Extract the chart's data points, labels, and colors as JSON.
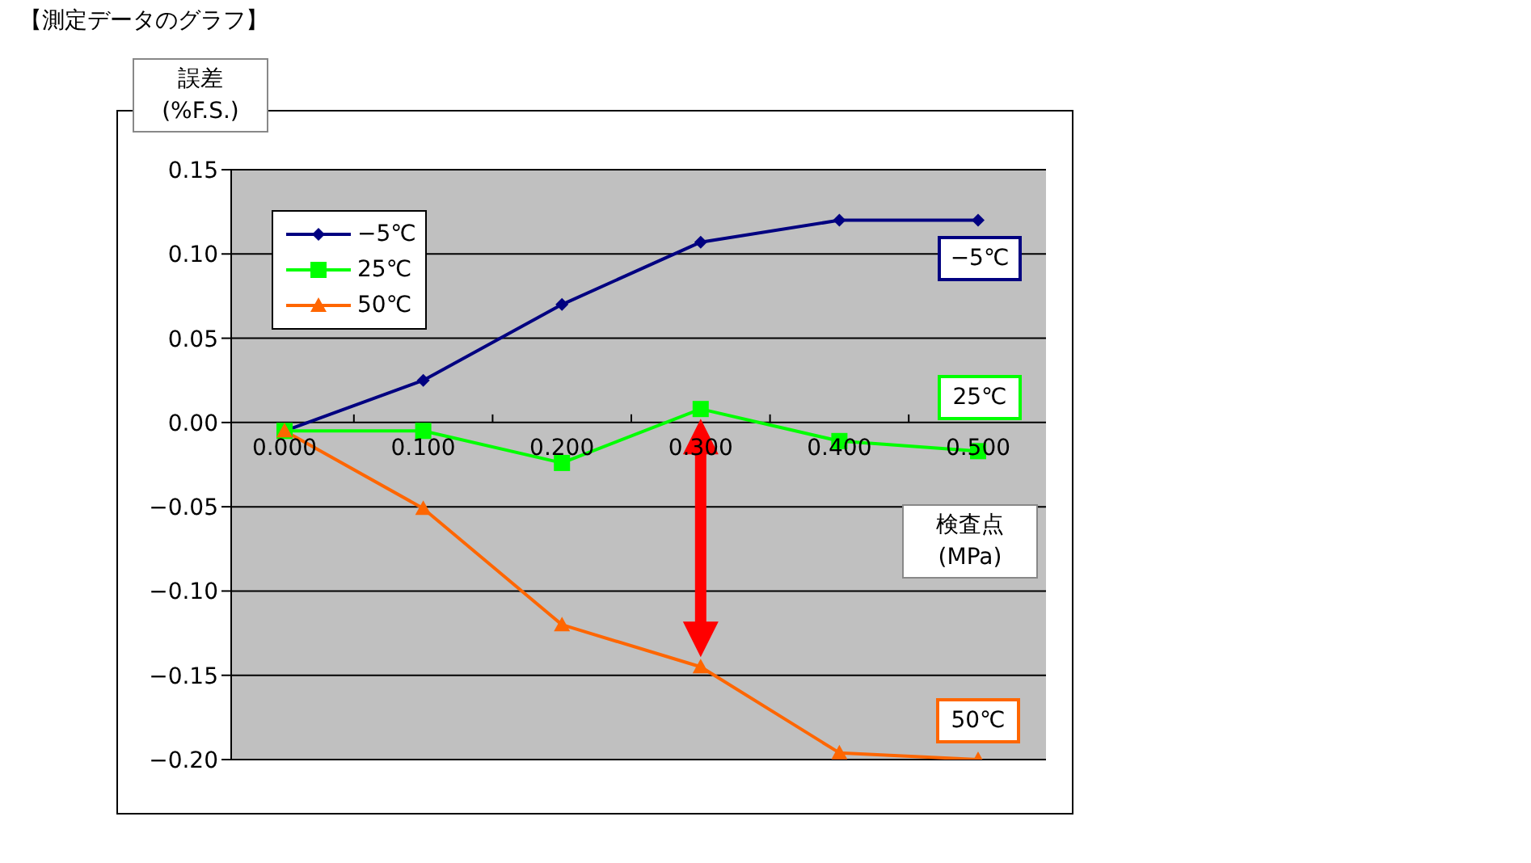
{
  "chart_data": {
    "type": "line",
    "title": "【測定データのグラフ】",
    "xlabel": "検査点\n(MPa)",
    "ylabel": "誤差\n(%F.S.)",
    "categories": [
      "0.000",
      "0.100",
      "0.200",
      "0.300",
      "0.400",
      "0.500"
    ],
    "series": [
      {
        "name": "−5℃",
        "color": "#000080",
        "marker": "diamond",
        "values": [
          -0.005,
          0.025,
          0.07,
          0.107,
          0.12,
          0.12
        ]
      },
      {
        "name": "25℃",
        "color": "#00ff00",
        "marker": "square",
        "values": [
          -0.005,
          -0.005,
          -0.024,
          0.008,
          -0.011,
          -0.017
        ]
      },
      {
        "name": "50℃",
        "color": "#ff6600",
        "marker": "triangle",
        "values": [
          -0.005,
          -0.051,
          -0.12,
          -0.145,
          -0.196,
          -0.2
        ]
      }
    ],
    "annotations": [
      "−5℃",
      "25℃",
      "50℃"
    ],
    "ylim": [
      -0.2,
      0.15
    ],
    "yticks": [
      {
        "value": -0.2,
        "label": "−0.20"
      },
      {
        "value": -0.15,
        "label": "−0.15"
      },
      {
        "value": -0.1,
        "label": "−0.10"
      },
      {
        "value": -0.05,
        "label": "−0.05"
      },
      {
        "value": 0,
        "label": "0.00"
      },
      {
        "value": 0.05,
        "label": "0.05"
      },
      {
        "value": 0.1,
        "label": "0.10"
      },
      {
        "value": 0.15,
        "label": "0.15"
      }
    ],
    "grid": "y",
    "legend": "top left",
    "line_style": "solid"
  }
}
